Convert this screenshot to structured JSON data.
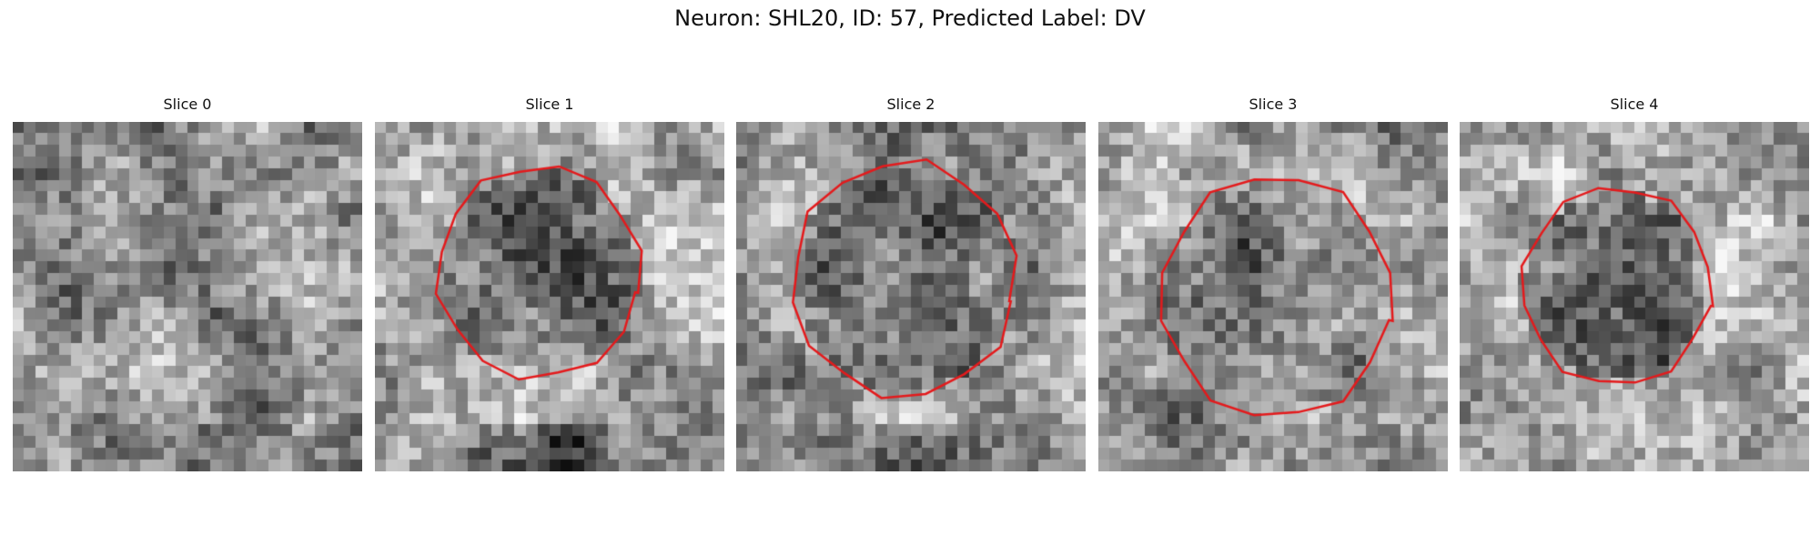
{
  "figure": {
    "title": "Neuron: SHL20, ID: 57, Predicted Label: DV"
  },
  "panels": [
    {
      "title": "Slice 0",
      "has_outline": false,
      "brightness": 0.58,
      "dark_center": 0.0,
      "center": [
        0.5,
        0.5
      ],
      "radius": 0.0,
      "bottom_dark": 0.1,
      "seed": 11
    },
    {
      "title": "Slice 1",
      "has_outline": true,
      "brightness": 0.66,
      "dark_center": 0.22,
      "center": [
        0.47,
        0.43
      ],
      "radius": 0.29,
      "bottom_dark": 0.35,
      "seed": 23
    },
    {
      "title": "Slice 2",
      "has_outline": true,
      "brightness": 0.6,
      "dark_center": 0.18,
      "center": [
        0.48,
        0.45
      ],
      "radius": 0.32,
      "bottom_dark": 0.25,
      "seed": 37
    },
    {
      "title": "Slice 3",
      "has_outline": true,
      "brightness": 0.6,
      "dark_center": 0.12,
      "center": [
        0.51,
        0.5
      ],
      "radius": 0.33,
      "bottom_dark": 0.15,
      "seed": 41
    },
    {
      "title": "Slice 4",
      "has_outline": true,
      "brightness": 0.7,
      "dark_center": 0.28,
      "center": [
        0.45,
        0.47
      ],
      "radius": 0.27,
      "bottom_dark": 0.05,
      "seed": 53
    }
  ],
  "colors": {
    "outline": "#e41a1c",
    "background": "#ffffff"
  }
}
